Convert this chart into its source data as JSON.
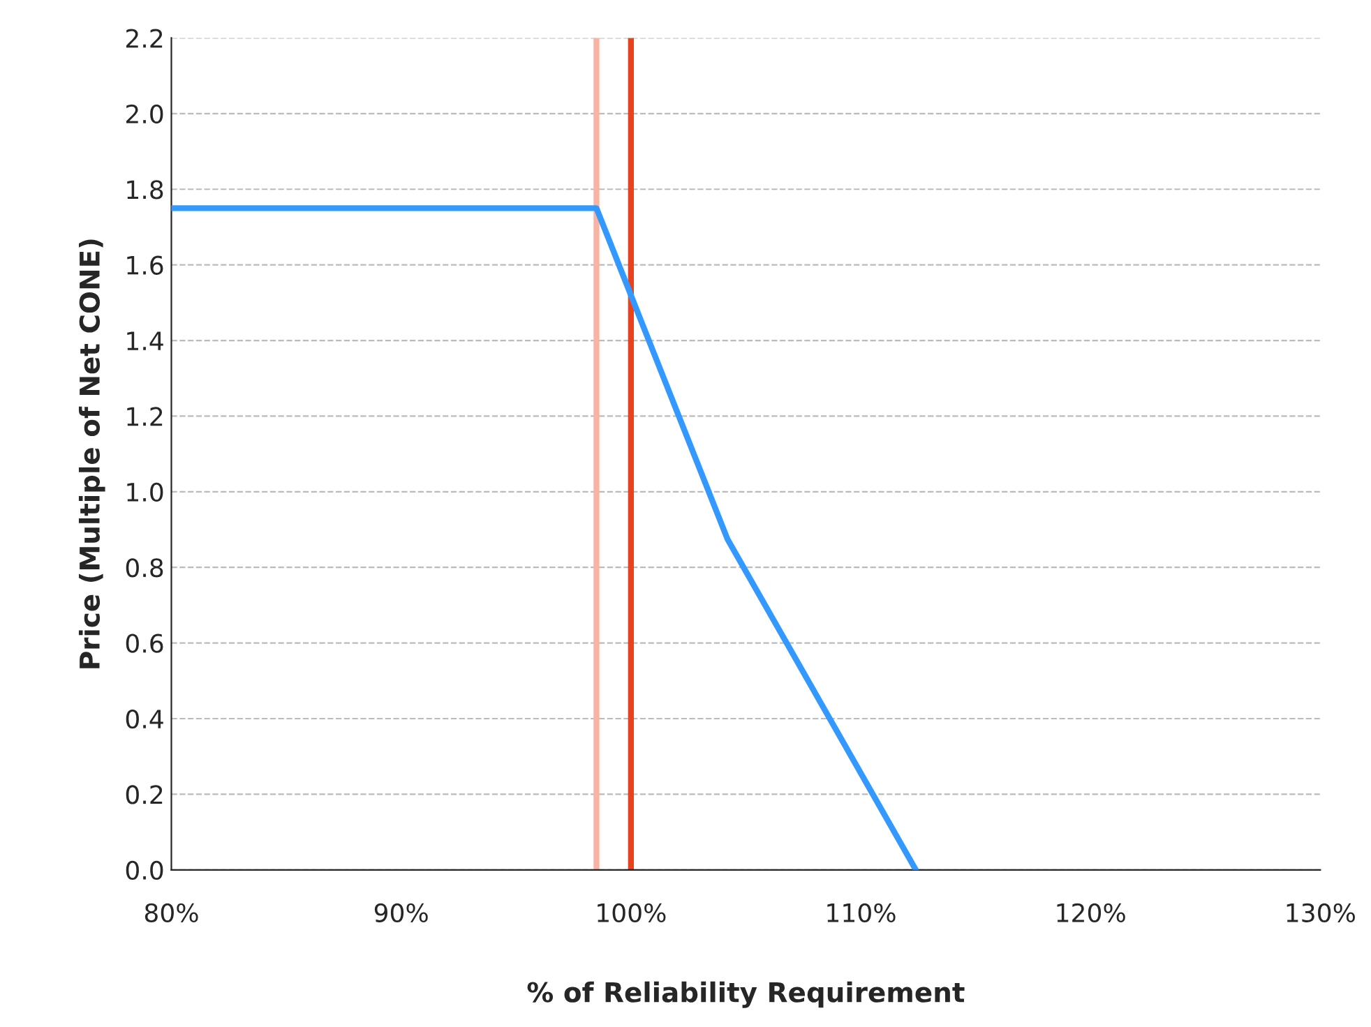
{
  "chart_data": {
    "type": "line",
    "xlabel": "% of Reliability Requirement",
    "ylabel": "Price (Multiple of Net CONE)",
    "series": [
      {
        "color": "#3399ff",
        "x": [
          80,
          98.5,
          104.2,
          112.4
        ],
        "values": [
          1.75,
          1.75,
          0.875,
          0
        ]
      }
    ],
    "xlim": [
      80,
      130
    ],
    "xticks": [
      {
        "value": 80,
        "label": "80%"
      },
      {
        "value": 90,
        "label": "90%"
      },
      {
        "value": 100,
        "label": "100%"
      },
      {
        "value": 110,
        "label": "110%"
      },
      {
        "value": 120,
        "label": "120%"
      },
      {
        "value": 130,
        "label": "130%"
      }
    ],
    "ylim": [
      0,
      2.2
    ],
    "yticks": [
      {
        "value": 0,
        "label": "0.0"
      },
      {
        "value": 0.2,
        "label": "0.2"
      },
      {
        "value": 0.4,
        "label": "0.4"
      },
      {
        "value": 0.6,
        "label": "0.6"
      },
      {
        "value": 0.8,
        "label": "0.8"
      },
      {
        "value": 1.0,
        "label": "1.0"
      },
      {
        "value": 1.2,
        "label": "1.2"
      },
      {
        "value": 1.4,
        "label": "1.4"
      },
      {
        "value": 1.6,
        "label": "1.6"
      },
      {
        "value": 1.8,
        "label": "1.8"
      },
      {
        "value": 2.0,
        "label": "2.0"
      },
      {
        "value": 2.2,
        "label": "2.2"
      }
    ],
    "ref_lines": [
      {
        "axis": "x",
        "value": 98.5,
        "color": "#f7b3a3"
      },
      {
        "axis": "x",
        "value": 100,
        "color": "#e8431e"
      }
    ],
    "grid": "y",
    "legend": false
  }
}
